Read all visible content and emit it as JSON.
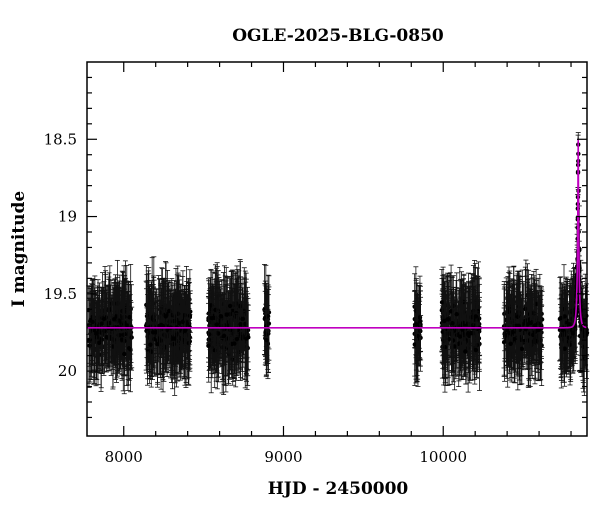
{
  "chart_data": {
    "type": "scatter",
    "title": "OGLE-2025-BLG-0850",
    "xlabel": "HJD - 2450000",
    "ylabel": "I magnitude",
    "xlim": [
      7770,
      10900
    ],
    "ylim": [
      20.42,
      18.0
    ],
    "y_inverted": true,
    "x_ticks": [
      8000,
      9000,
      10000
    ],
    "y_ticks": [
      18.5,
      19,
      19.5,
      20
    ],
    "x_tick_labels": [
      "8000",
      "9000",
      "10000"
    ],
    "y_tick_labels": [
      "18.5",
      "19",
      "19.5",
      "20"
    ],
    "baseline_mag": 19.72,
    "typical_error": 0.22,
    "seasons": [
      {
        "start": 7780,
        "end": 8050
      },
      {
        "start": 8140,
        "end": 8420
      },
      {
        "start": 8530,
        "end": 8780
      },
      {
        "start": 8880,
        "end": 8910
      },
      {
        "start": 9820,
        "end": 9860
      },
      {
        "start": 9990,
        "end": 10230
      },
      {
        "start": 10380,
        "end": 10620
      },
      {
        "start": 10730,
        "end": 10900
      }
    ],
    "event": {
      "t0": 10845,
      "peak_mag": 18.5,
      "tE": 12
    },
    "series": [
      {
        "color": "#000000",
        "marker": "circle-with-errorbars"
      },
      {
        "color": "#c000c0",
        "style": "line"
      }
    ],
    "grid": false,
    "legend": "none"
  }
}
